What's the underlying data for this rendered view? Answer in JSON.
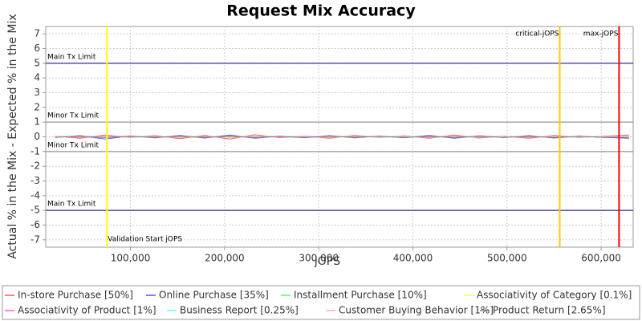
{
  "chart_data": {
    "type": "line",
    "title": "Request Mix Accuracy",
    "x_label": "jOPS",
    "y_label": "Actual % in the Mix - Expected % in the Mix",
    "x": [
      20000,
      46500,
      73000,
      99500,
      126000,
      152500,
      179000,
      205500,
      232000,
      258500,
      285000,
      311500,
      338000,
      364500,
      391000,
      417500,
      444000,
      470500,
      497000,
      523500,
      550000,
      576500,
      603000,
      629500
    ],
    "series": [
      {
        "name": "In-store Purchase [50%]",
        "color": "#ff5555",
        "values": [
          0.05,
          -0.1,
          0.12,
          -0.05,
          0.08,
          -0.12,
          0.1,
          -0.15,
          0.14,
          -0.06,
          0.05,
          -0.1,
          0.09,
          -0.04,
          0.07,
          -0.1,
          0.12,
          -0.08,
          0.05,
          -0.09,
          0.1,
          -0.05,
          0.04,
          0.12
        ]
      },
      {
        "name": "Online Purchase [35%]",
        "color": "#5555ff",
        "values": [
          -0.04,
          0.08,
          -0.15,
          0.06,
          -0.07,
          0.1,
          -0.08,
          0.12,
          -0.1,
          0.05,
          -0.06,
          0.08,
          -0.07,
          0.05,
          -0.06,
          0.09,
          -0.1,
          0.07,
          -0.05,
          0.08,
          -0.08,
          0.05,
          -0.04,
          -0.1
        ]
      },
      {
        "name": "Installment Purchase [10%]",
        "color": "#55ff55",
        "values": [
          0.02,
          0.05,
          -0.04,
          0.03,
          -0.02,
          0.04,
          -0.03,
          0.05,
          -0.04,
          0.02,
          -0.03,
          0.04,
          -0.02,
          0.03,
          -0.03,
          0.02,
          -0.04,
          0.03,
          -0.02,
          0.04,
          -0.03,
          0.02,
          -0.02,
          0.03
        ]
      },
      {
        "name": "Associativity of Category [0.1%]",
        "color": "#ffff55",
        "values": [
          0.01,
          -0.01,
          0.02,
          0,
          -0.01,
          0.01,
          0,
          -0.02,
          0.01,
          0,
          0.01,
          -0.01,
          0,
          0.01,
          -0.01,
          0,
          0.01,
          0,
          -0.01,
          0.01,
          0,
          -0.01,
          0.01,
          0
        ]
      },
      {
        "name": "Associativity of Product [1%]",
        "color": "#ff55ff",
        "values": [
          0.02,
          -0.03,
          0.01,
          0.03,
          -0.02,
          0.01,
          -0.03,
          0.02,
          0.01,
          -0.02,
          0.03,
          -0.01,
          0.02,
          -0.02,
          0.01,
          0.02,
          -0.03,
          0.01,
          0.02,
          -0.01,
          0.01,
          -0.02,
          0.02,
          0.01
        ]
      },
      {
        "name": "Business Report [0.25%]",
        "color": "#55ffff",
        "values": [
          -0.01,
          0.02,
          -0.02,
          0.01,
          0.01,
          -0.02,
          0.02,
          -0.01,
          0.01,
          0.02,
          -0.01,
          0.01,
          -0.02,
          0.01,
          0.02,
          -0.01,
          0.01,
          -0.02,
          0.01,
          0.01,
          -0.01,
          0.02,
          -0.01,
          0.01
        ]
      },
      {
        "name": "Customer Buying Behavior [1%]",
        "color": "#ffafaf",
        "values": [
          0.03,
          -0.02,
          0.04,
          -0.03,
          0.02,
          -0.04,
          0.03,
          -0.02,
          0.04,
          -0.03,
          0.02,
          -0.03,
          0.03,
          -0.02,
          0.02,
          -0.03,
          0.04,
          -0.02,
          0.03,
          -0.02,
          0.03,
          -0.03,
          0.02,
          0.04
        ]
      },
      {
        "name": "Product Return [2.65%]",
        "color": "#808080",
        "values": [
          -0.03,
          0.04,
          -0.05,
          0.03,
          -0.04,
          0.05,
          -0.03,
          0.04,
          -0.05,
          0.03,
          -0.04,
          0.05,
          -0.03,
          0.04,
          -0.05,
          0.04,
          -0.03,
          0.05,
          -0.04,
          0.03,
          -0.05,
          0.04,
          -0.03,
          -0.05
        ]
      }
    ],
    "xlim": [
      10000,
      634000
    ],
    "ylim": [
      -7.5,
      7.5
    ],
    "xticks": [
      {
        "value": 100000,
        "label": "100,000"
      },
      {
        "value": 200000,
        "label": "200,000"
      },
      {
        "value": 300000,
        "label": "300,000"
      },
      {
        "value": 400000,
        "label": "400,000"
      },
      {
        "value": 500000,
        "label": "500,000"
      },
      {
        "value": 600000,
        "label": "600,000"
      }
    ],
    "yticks": [
      -7,
      -6,
      -5,
      -4,
      -3,
      -2,
      -1,
      0,
      1,
      2,
      3,
      4,
      5,
      6,
      7
    ],
    "grid": true,
    "ref_lines": [
      {
        "value": 5,
        "label": "Main Tx Limit",
        "color": "#000080"
      },
      {
        "value": 1,
        "label": "Minor Tx Limit",
        "color": "#808080"
      },
      {
        "value": -1,
        "label": "Minor Tx Limit",
        "color": "#808080"
      },
      {
        "value": -5,
        "label": "Main Tx Limit",
        "color": "#000080"
      }
    ],
    "markers": [
      {
        "value": 75000,
        "label": "Validation Start jOPS",
        "color": "#ffff00"
      },
      {
        "value": 556000,
        "label": "critical-jOPS",
        "color": "#ffc800"
      },
      {
        "value": 619000,
        "label": "max-jOPS",
        "color": "#ff0000"
      }
    ]
  }
}
